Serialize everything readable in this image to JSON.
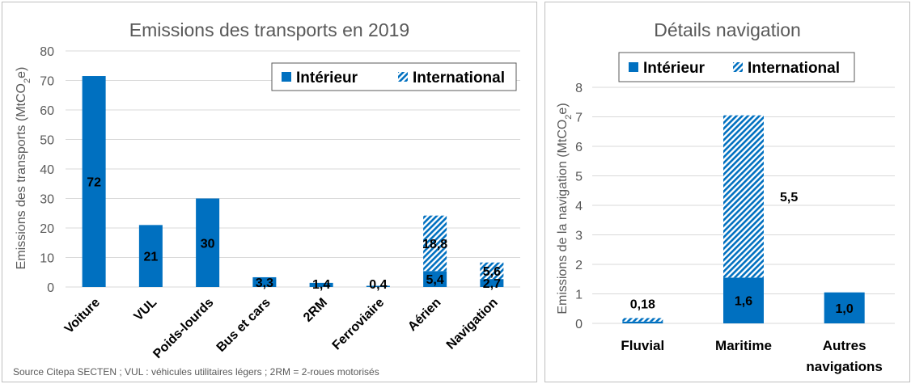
{
  "colors": {
    "series": "#0070c0",
    "grid": "#d9d9d9",
    "axis_text": "#595959",
    "label_text": "#000000"
  },
  "chart_data": [
    {
      "type": "bar",
      "stacked": true,
      "title": "Emissions des transports en 2019",
      "ylabel": "Emissions des transports (MtCO2e)",
      "ylabel_main": "Emissions des transports (MtCO",
      "ylabel_sub": "2",
      "ylabel_end": "e)",
      "ylim": [
        0,
        80
      ],
      "yticks": [
        0,
        10,
        20,
        30,
        40,
        50,
        60,
        70,
        80
      ],
      "grid": true,
      "legend_position": "top-right",
      "categories": [
        "Voiture",
        "VUL",
        "Poids-lourds",
        "Bus et cars",
        "2RM",
        "Ferroviaire",
        "Aérien",
        "Navigation"
      ],
      "series": [
        {
          "name": "Intérieur",
          "pattern": "solid",
          "values": [
            71.5,
            21,
            30,
            3.3,
            1.4,
            0.4,
            5.4,
            2.7
          ],
          "labels": [
            "72",
            "21",
            "30",
            "3,3",
            "1,4",
            "0,4",
            "5,4",
            "2,7"
          ]
        },
        {
          "name": "International",
          "pattern": "hatched",
          "values": [
            0,
            0,
            0,
            0,
            0,
            0,
            18.8,
            5.6
          ],
          "labels": [
            "",
            "",
            "",
            "",
            "",
            "",
            "18,8",
            "5,6"
          ]
        }
      ],
      "source": "Source Citepa SECTEN ; VUL : véhicules utilitaires légers ; 2RM = 2-roues motorisés"
    },
    {
      "type": "bar",
      "stacked": true,
      "title": "Détails navigation",
      "ylabel": "Emissions de la navigation (MtCO2e)",
      "ylabel_main": "Emissions de la navigation (MtCO",
      "ylabel_sub": "2",
      "ylabel_end": "e)",
      "ylim": [
        0,
        8
      ],
      "yticks": [
        0,
        1,
        2,
        3,
        4,
        5,
        6,
        7,
        8
      ],
      "grid": true,
      "legend_position": "top-center",
      "categories": [
        "Fluvial",
        "Maritime",
        "Autres navigations"
      ],
      "series": [
        {
          "name": "Intérieur",
          "pattern": "solid",
          "values": [
            0.06,
            1.55,
            1.05
          ],
          "labels": [
            "",
            "1,6",
            "1,0"
          ]
        },
        {
          "name": "International",
          "pattern": "hatched",
          "values": [
            0.12,
            5.5,
            0
          ],
          "labels": [
            "",
            "5,5",
            ""
          ]
        }
      ],
      "total_labels": [
        "0,18",
        "",
        ""
      ]
    }
  ]
}
